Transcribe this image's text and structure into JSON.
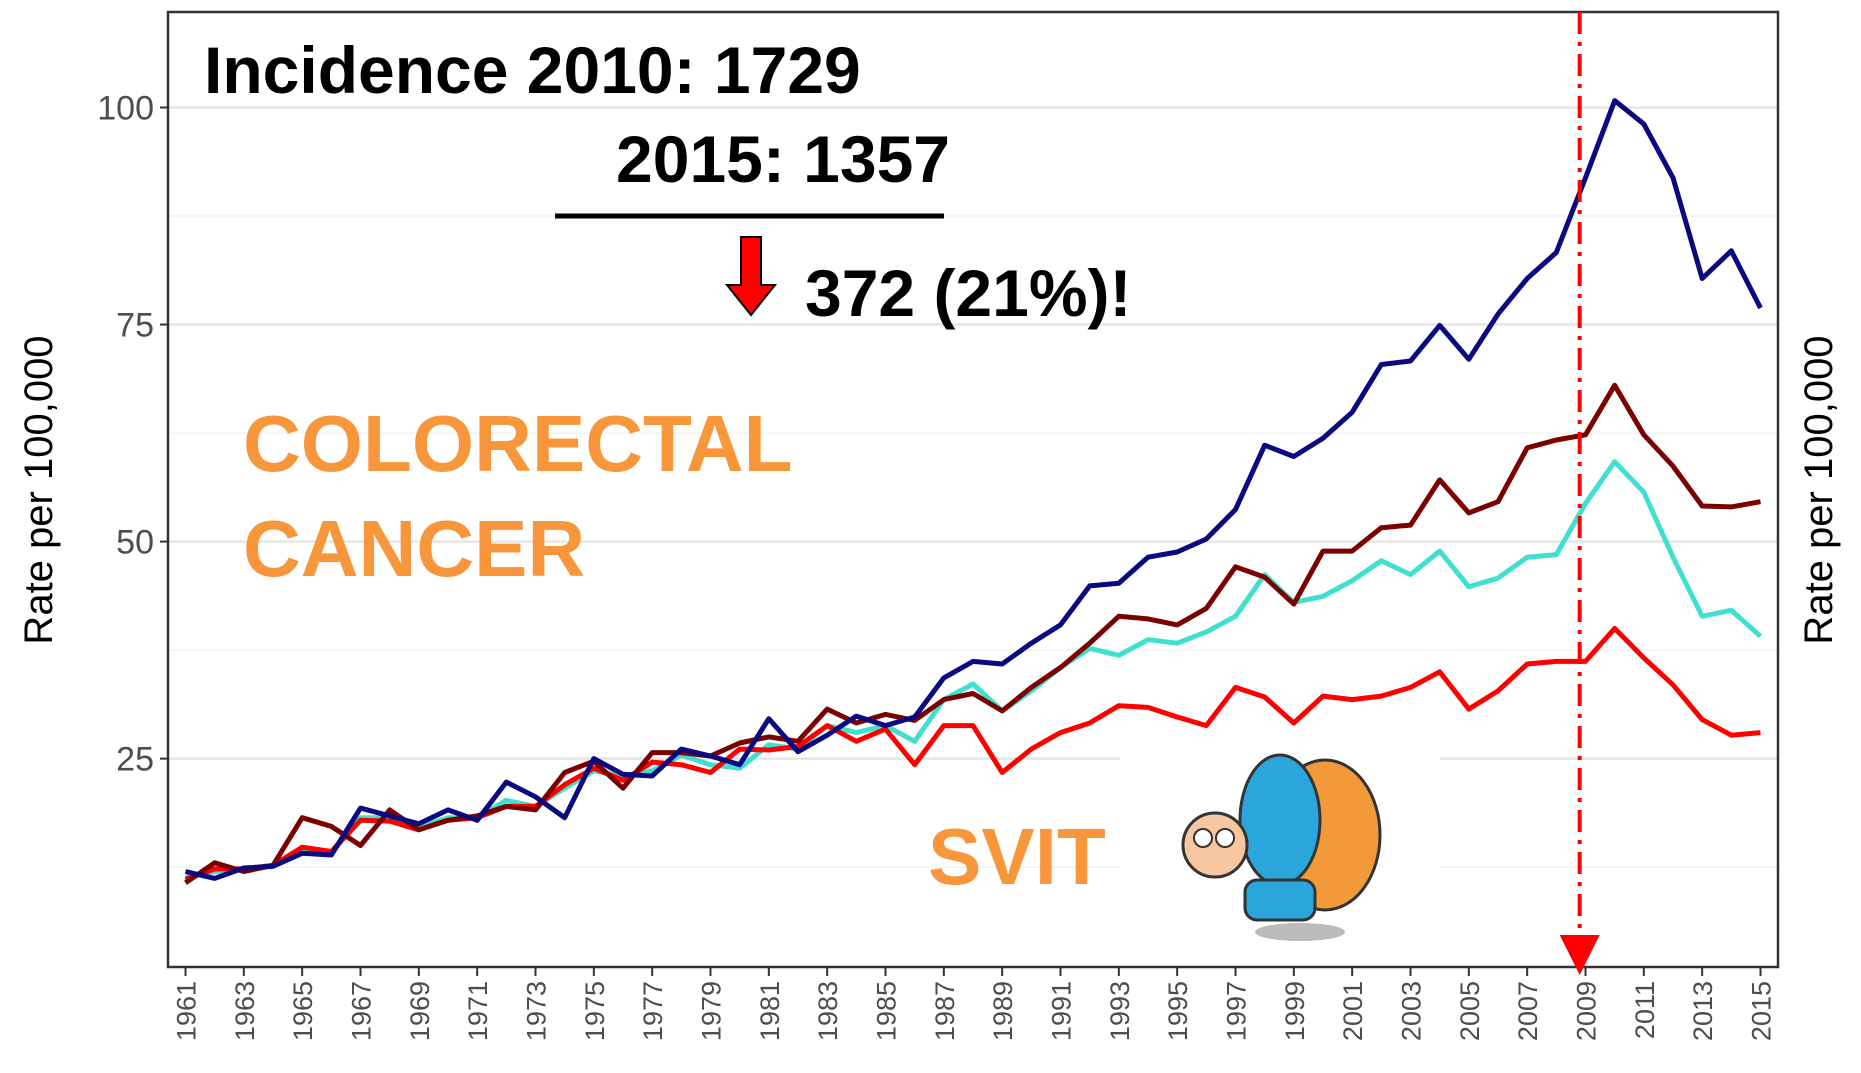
{
  "chart_data": {
    "type": "line",
    "ylabel": "Rate per 100,000",
    "ylabel_right": "Rate per 100,000",
    "annotations": [
      "Incidence 2010: 1729",
      "2015: 1357",
      "372 (21%)!",
      "COLORECTAL",
      "CANCER",
      "SVIT"
    ],
    "x": [
      1961,
      1962,
      1963,
      1964,
      1965,
      1966,
      1967,
      1968,
      1969,
      1970,
      1971,
      1972,
      1973,
      1974,
      1975,
      1976,
      1977,
      1978,
      1979,
      1980,
      1981,
      1982,
      1983,
      1984,
      1985,
      1986,
      1987,
      1988,
      1989,
      1990,
      1991,
      1992,
      1993,
      1994,
      1995,
      1996,
      1997,
      1998,
      1999,
      2000,
      2001,
      2002,
      2003,
      2004,
      2005,
      2006,
      2007,
      2008,
      2009,
      2010,
      2011,
      2012,
      2013,
      2014,
      2015
    ],
    "xlim": [
      1960.4,
      2015.6
    ],
    "xticks": [
      1961,
      1963,
      1965,
      1967,
      1969,
      1971,
      1973,
      1975,
      1977,
      1979,
      1981,
      1983,
      1985,
      1987,
      1989,
      1991,
      1993,
      1995,
      1997,
      1999,
      2001,
      2003,
      2005,
      2007,
      2009,
      2011,
      2013,
      2015
    ],
    "ylim": [
      1,
      111
    ],
    "yticks": [
      25,
      50,
      75,
      100
    ],
    "minor_yticks": [
      12.5,
      37.5,
      62.5,
      87.5
    ],
    "grid": true,
    "vline_x": 2008.8,
    "vline_color": "#ff0000",
    "series": [
      {
        "color": "#40e0d0",
        "values": [
          11.3,
          12.0,
          12.3,
          12.6,
          14.3,
          14.1,
          18.2,
          18.2,
          17.1,
          18.2,
          18.2,
          20.2,
          19.5,
          21.6,
          23.6,
          23.0,
          23.6,
          25.4,
          24.3,
          23.9,
          26.6,
          26.1,
          28.8,
          28.0,
          28.8,
          27.0,
          31.8,
          33.6,
          30.5,
          32.8,
          35.5,
          37.7,
          36.9,
          38.7,
          38.3,
          39.6,
          41.4,
          46.2,
          43.0,
          43.7,
          45.5,
          47.8,
          46.2,
          48.9,
          44.8,
          45.8,
          48.2,
          48.5,
          54.4,
          59.2,
          55.7,
          48.2,
          41.4,
          42.1,
          39.1
        ]
      },
      {
        "color": "#ff0000",
        "values": [
          11.1,
          12.3,
          12.3,
          12.7,
          14.8,
          14.3,
          17.9,
          17.8,
          16.8,
          17.9,
          18.2,
          19.5,
          19.5,
          22.0,
          23.9,
          22.5,
          24.6,
          24.3,
          23.4,
          26.1,
          26.0,
          26.4,
          28.8,
          27.0,
          28.4,
          24.3,
          28.8,
          28.8,
          23.4,
          26.1,
          28.0,
          29.1,
          31.1,
          30.9,
          29.8,
          28.8,
          33.2,
          32.1,
          29.1,
          32.2,
          31.8,
          32.2,
          33.2,
          35.0,
          30.7,
          32.8,
          35.9,
          36.2,
          36.2,
          40.0,
          36.6,
          33.5,
          29.5,
          27.7,
          28.0
        ]
      },
      {
        "color": "#7b0000",
        "values": [
          10.7,
          13.0,
          12.0,
          12.7,
          18.2,
          17.2,
          15.0,
          19.1,
          16.8,
          17.9,
          18.4,
          19.5,
          19.1,
          23.4,
          24.7,
          21.6,
          25.7,
          25.7,
          25.3,
          26.8,
          27.5,
          27.0,
          30.7,
          29.1,
          30.1,
          29.4,
          31.8,
          32.5,
          30.5,
          33.2,
          35.5,
          38.3,
          41.4,
          41.1,
          40.4,
          42.3,
          47.1,
          45.9,
          42.8,
          48.9,
          48.9,
          51.6,
          51.9,
          57.1,
          53.3,
          54.6,
          60.8,
          61.7,
          62.3,
          68.0,
          62.3,
          58.7,
          54.1,
          54.0,
          54.6
        ]
      },
      {
        "color": "#0a0a80",
        "values": [
          12.0,
          11.2,
          12.4,
          12.6,
          14.1,
          13.9,
          19.3,
          18.4,
          17.5,
          19.1,
          17.9,
          22.3,
          20.6,
          18.2,
          25.0,
          23.2,
          23.0,
          26.1,
          25.3,
          24.3,
          29.6,
          25.8,
          27.7,
          29.9,
          28.8,
          29.8,
          34.3,
          36.2,
          35.9,
          38.3,
          40.4,
          44.9,
          45.2,
          48.2,
          48.8,
          50.3,
          53.7,
          61.1,
          59.8,
          61.9,
          64.9,
          70.4,
          70.8,
          74.9,
          71.0,
          76.2,
          80.3,
          83.3,
          91.9,
          100.8,
          98.1,
          91.9,
          80.3,
          83.5,
          76.9
        ]
      }
    ]
  }
}
